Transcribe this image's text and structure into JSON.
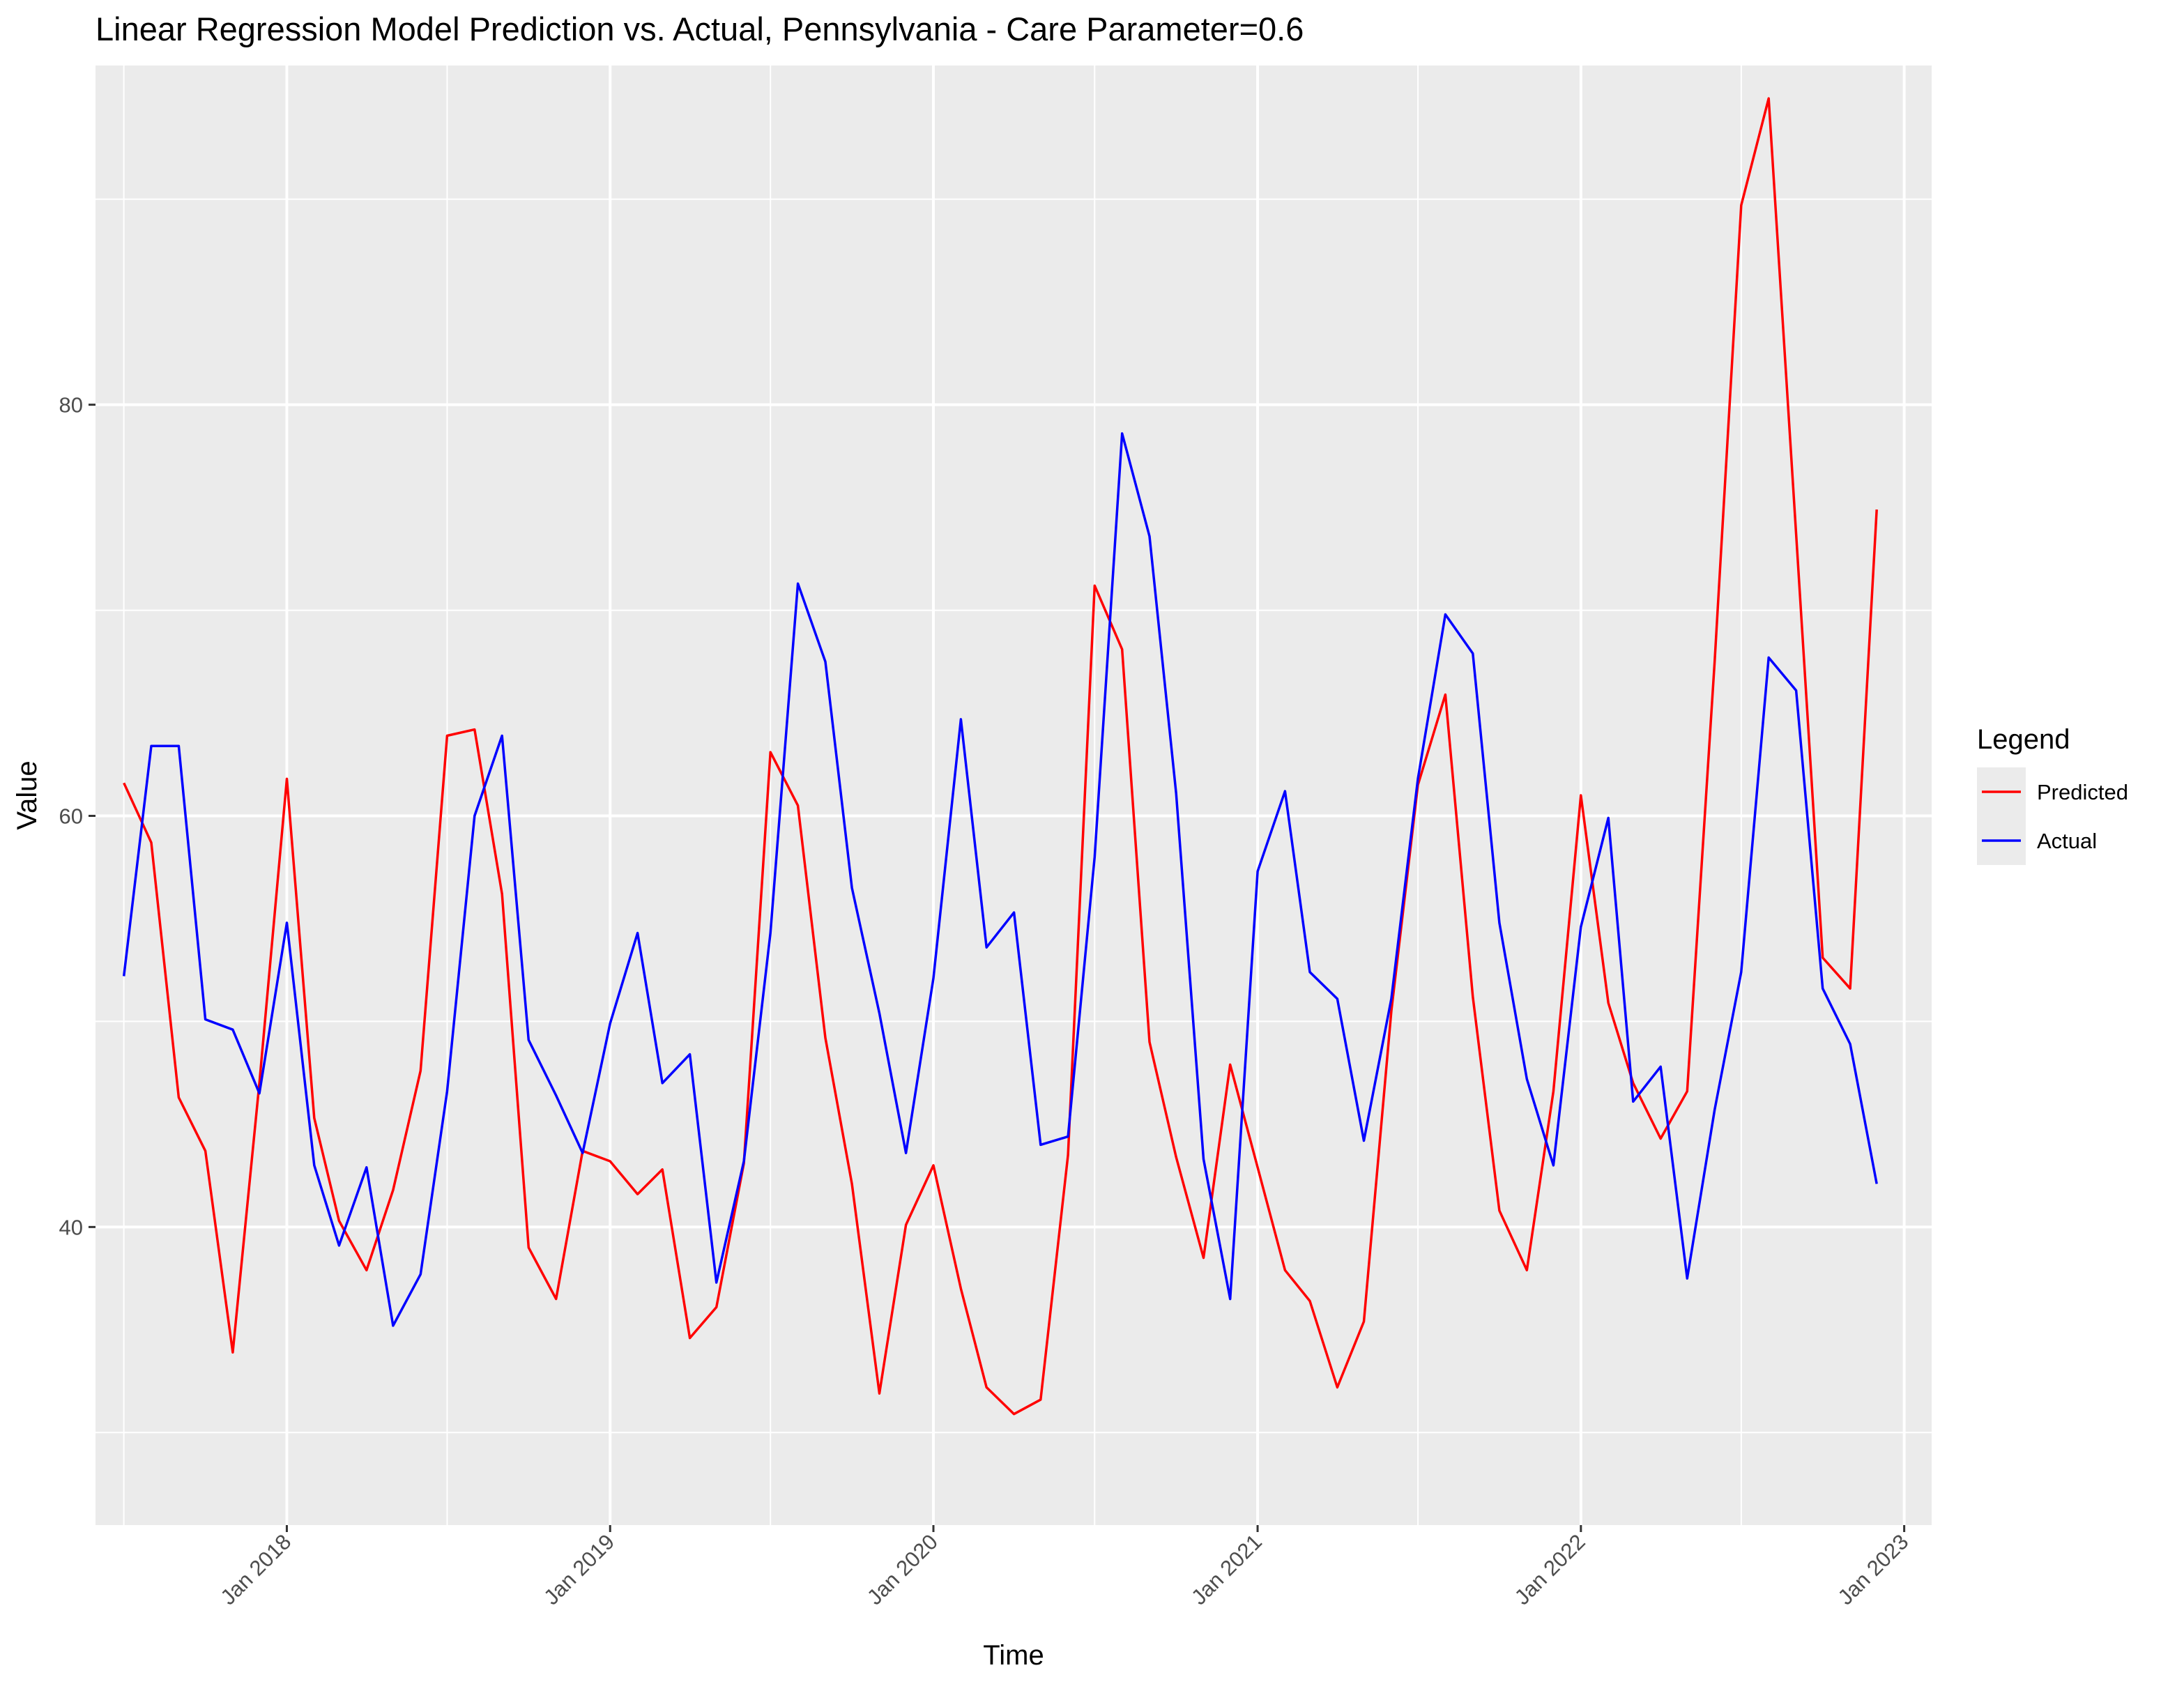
{
  "chart_data": {
    "type": "line",
    "title": "Linear Regression Model Prediction vs. Actual, Pennsylvania - Care Parameter=0.6",
    "xlabel": "Time",
    "ylabel": "Value",
    "ylim": [
      25.5,
      96.5
    ],
    "xlim": [
      "2017-05-30",
      "2023-02-01"
    ],
    "y_ticks": [
      40,
      60,
      80
    ],
    "y_minor_ticks": [
      30,
      50,
      70,
      90
    ],
    "x_ticks": [
      {
        "date": "2018-01-01",
        "label": "Jan 2018"
      },
      {
        "date": "2019-01-01",
        "label": "Jan 2019"
      },
      {
        "date": "2020-01-01",
        "label": "Jan 2020"
      },
      {
        "date": "2021-01-01",
        "label": "Jan 2021"
      },
      {
        "date": "2022-01-01",
        "label": "Jan 2022"
      },
      {
        "date": "2023-01-01",
        "label": "Jan 2023"
      }
    ],
    "x_minor_ticks": [
      "2017-07-01",
      "2018-07-01",
      "2019-07-01",
      "2020-07-01",
      "2021-07-01",
      "2022-07-01"
    ],
    "grid": true,
    "legend": {
      "title": "Legend",
      "position": "right"
    },
    "x": [
      "2017-07-01",
      "2017-08-01",
      "2017-09-01",
      "2017-10-01",
      "2017-11-01",
      "2017-12-01",
      "2018-01-01",
      "2018-02-01",
      "2018-03-01",
      "2018-04-01",
      "2018-05-01",
      "2018-06-01",
      "2018-07-01",
      "2018-08-01",
      "2018-09-01",
      "2018-10-01",
      "2018-11-01",
      "2018-12-01",
      "2019-01-01",
      "2019-02-01",
      "2019-03-01",
      "2019-04-01",
      "2019-05-01",
      "2019-06-01",
      "2019-07-01",
      "2019-08-01",
      "2019-09-01",
      "2019-10-01",
      "2019-11-01",
      "2019-12-01",
      "2020-01-01",
      "2020-02-01",
      "2020-03-01",
      "2020-04-01",
      "2020-05-01",
      "2020-06-01",
      "2020-07-01",
      "2020-08-01",
      "2020-09-01",
      "2020-10-01",
      "2020-11-01",
      "2020-12-01",
      "2021-01-01",
      "2021-02-01",
      "2021-03-01",
      "2021-04-01",
      "2021-05-01",
      "2021-06-01",
      "2021-07-01",
      "2021-08-01",
      "2021-09-01",
      "2021-10-01",
      "2021-11-01",
      "2021-12-01",
      "2022-01-01",
      "2022-02-01",
      "2022-03-01",
      "2022-04-01",
      "2022-05-01",
      "2022-06-01",
      "2022-07-01",
      "2022-08-01",
      "2022-09-01",
      "2022-10-01",
      "2022-11-01",
      "2022-12-01"
    ],
    "series": [
      {
        "name": "Predicted",
        "color": "#ff0000",
        "values": [
          61.6,
          58.7,
          46.3,
          43.7,
          33.9,
          47.0,
          61.8,
          45.3,
          40.3,
          37.9,
          41.8,
          47.6,
          63.9,
          64.2,
          56.2,
          39.0,
          36.5,
          43.7,
          43.2,
          41.6,
          42.8,
          34.6,
          36.1,
          43.1,
          63.1,
          60.5,
          49.2,
          42.1,
          31.9,
          40.1,
          43.0,
          37.0,
          32.2,
          30.9,
          31.6,
          43.5,
          71.2,
          68.1,
          49.0,
          43.4,
          38.5,
          47.9,
          42.9,
          37.9,
          36.4,
          32.2,
          35.4,
          50.5,
          61.5,
          65.9,
          51.2,
          40.8,
          37.9,
          46.6,
          61.0,
          50.9,
          47.0,
          44.3,
          46.6,
          67.5,
          89.7,
          94.9,
          73.7,
          53.1,
          51.6,
          74.9
        ]
      },
      {
        "name": "Actual",
        "color": "#0000ff",
        "values": [
          52.2,
          63.4,
          63.4,
          50.1,
          49.6,
          46.5,
          54.8,
          43.0,
          39.1,
          42.9,
          35.2,
          37.7,
          46.6,
          60.0,
          63.9,
          49.1,
          46.4,
          43.6,
          49.9,
          54.3,
          47.0,
          48.4,
          37.3,
          43.2,
          54.3,
          71.3,
          67.5,
          56.5,
          50.4,
          43.6,
          52.1,
          64.7,
          53.6,
          55.3,
          44.0,
          44.4,
          58.0,
          78.6,
          73.6,
          61.1,
          43.3,
          36.5,
          57.3,
          61.2,
          52.4,
          51.1,
          44.2,
          51.1,
          61.8,
          69.8,
          67.9,
          54.8,
          47.2,
          43.0,
          54.6,
          59.9,
          46.1,
          47.8,
          37.5,
          45.7,
          52.4,
          67.7,
          66.1,
          51.6,
          48.9,
          42.1
        ]
      }
    ]
  }
}
